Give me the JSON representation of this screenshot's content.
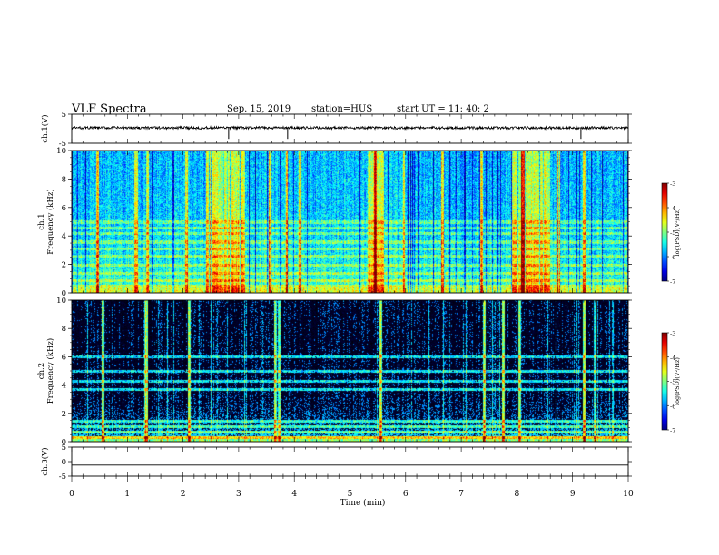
{
  "header": {
    "title": "VLF Spectra",
    "date": "Sep. 15, 2019",
    "station": "station=HUS",
    "start": "start  UT =   11: 40: 2"
  },
  "chart_data": [
    {
      "type": "line",
      "ylabel": "ch.1(V)",
      "ylim": [
        -5,
        5
      ],
      "yticks": [
        "5",
        "-5"
      ],
      "xlim": [
        0,
        10
      ],
      "baseline": 0.3,
      "spikes_min": [
        2.82,
        3.88,
        9.15
      ]
    },
    {
      "type": "heatmap",
      "ylabel": "ch.1",
      "ylabel2": "Frequency  (kHz)",
      "ylim": [
        0,
        10
      ],
      "yticks": [
        "0",
        "2",
        "4",
        "6",
        "8",
        "10"
      ],
      "xlim": [
        0,
        10
      ],
      "colorbar": {
        "label": "log(PSD)(V²/Hz)",
        "ticks": [
          "-3",
          "-4",
          "-5",
          "-6",
          "-7"
        ],
        "range": [
          -7,
          -3
        ]
      },
      "bright_bands_min": [
        [
          2.4,
          3.1
        ],
        [
          5.3,
          5.6
        ],
        [
          7.9,
          8.6
        ]
      ],
      "bright_lines_min": [
        0.45,
        1.15,
        1.35,
        2.05,
        3.55,
        3.85,
        4.1,
        5.45,
        5.95,
        6.65,
        7.35,
        8.1,
        8.75,
        9.2
      ]
    },
    {
      "type": "heatmap",
      "ylabel": "ch.2",
      "ylabel2": "Frequency  (kHz)",
      "ylim": [
        0,
        10
      ],
      "yticks": [
        "0",
        "2",
        "4",
        "6",
        "8",
        "10"
      ],
      "xlim": [
        0,
        10
      ],
      "colorbar": {
        "label": "log(PSD)(V²/Hz)",
        "ticks": [
          "-3",
          "-4",
          "-5",
          "-6",
          "-7"
        ],
        "range": [
          -7,
          -3
        ]
      },
      "bright_lines_min": [
        0.55,
        1.33,
        2.1,
        3.65,
        3.72,
        5.55,
        7.4,
        7.75,
        8.05,
        9.2,
        9.4
      ]
    },
    {
      "type": "line",
      "ylabel": "ch.3(V)",
      "ylim": [
        -5,
        5
      ],
      "yticks": [
        "5",
        "0",
        "-5"
      ],
      "xlim": [
        0,
        10
      ],
      "baseline": -1.2,
      "xlabel": "Time  (min)",
      "xticks": [
        "0",
        "1",
        "2",
        "3",
        "4",
        "5",
        "6",
        "7",
        "8",
        "9",
        "10"
      ]
    }
  ]
}
